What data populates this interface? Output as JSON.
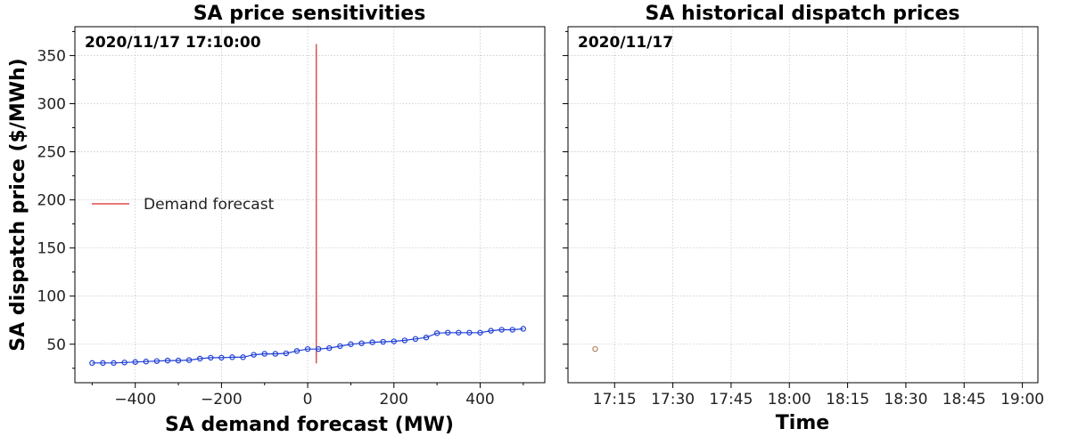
{
  "chart_data": [
    {
      "type": "line",
      "title": "SA price sensitivities",
      "xlabel": "SA demand forecast (MW)",
      "ylabel": "SA dispatch price ($/MWh)",
      "annotation": "2020/11/17 17:10:00",
      "xlim": [
        -540,
        550
      ],
      "ylim": [
        10,
        380
      ],
      "xticks": [
        -400,
        -200,
        0,
        200,
        400
      ],
      "xtick_labels": [
        "−400",
        "−200",
        "0",
        "200",
        "400"
      ],
      "yticks": [
        50,
        100,
        150,
        200,
        250,
        300,
        350
      ],
      "ytick_labels": [
        "50",
        "100",
        "150",
        "200",
        "250",
        "300",
        "350"
      ],
      "grid": true,
      "legend": {
        "position": "center-left",
        "entries": [
          "Demand forecast"
        ]
      },
      "demand_forecast_line": {
        "x": 20,
        "y_range": [
          30,
          362
        ],
        "color": "#d62728",
        "label": "Demand forecast"
      },
      "series": [
        {
          "color": "#1f3fd6",
          "marker": "circle",
          "x": [
            -500,
            -475,
            -450,
            -425,
            -400,
            -375,
            -350,
            -325,
            -300,
            -275,
            -250,
            -225,
            -200,
            -175,
            -150,
            -125,
            -100,
            -75,
            -50,
            -25,
            0,
            25,
            50,
            75,
            100,
            125,
            150,
            175,
            200,
            225,
            250,
            275,
            300,
            325,
            350,
            375,
            400,
            425,
            450,
            475,
            500
          ],
          "y": [
            30.5,
            30.5,
            30.5,
            31,
            31.5,
            32,
            32.5,
            33,
            33,
            33.5,
            35,
            36,
            36,
            36.5,
            36.5,
            39,
            40,
            40,
            40.5,
            43,
            45,
            45,
            46,
            48,
            50,
            51,
            52,
            52.5,
            53,
            54,
            55.5,
            57,
            61.5,
            62,
            62,
            62,
            62,
            64,
            65,
            65,
            66
          ]
        }
      ]
    },
    {
      "type": "scatter",
      "title": "SA historical dispatch prices",
      "xlabel": "Time",
      "ylabel": "",
      "annotation": "2020/11/17",
      "xlim": [
        "17:03",
        "19:04"
      ],
      "ylim": [
        10,
        380
      ],
      "xticks": [
        "17:15",
        "17:30",
        "17:45",
        "18:00",
        "18:15",
        "18:30",
        "18:45",
        "19:00"
      ],
      "yticks": [
        50,
        100,
        150,
        200,
        250,
        300,
        350
      ],
      "grid": true,
      "series": [
        {
          "color": "#b5825f",
          "marker": "circle-open",
          "x": [
            "17:10"
          ],
          "y": [
            45
          ]
        }
      ]
    }
  ]
}
